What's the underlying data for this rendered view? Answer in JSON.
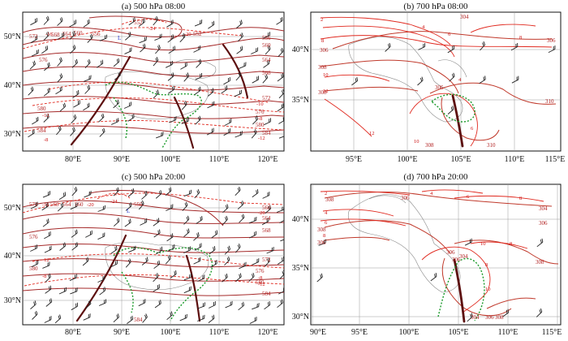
{
  "panels": [
    {
      "title": "(a) 500 hPa 08:00",
      "lat_ticks": [
        "50°N",
        "40°N",
        "30°N"
      ],
      "lon_ticks": [
        "80°E",
        "90°E",
        "100°E",
        "110°E",
        "120°E"
      ],
      "height_labels": [
        "572",
        "568",
        "564",
        "560",
        "556",
        "552",
        "552",
        "556",
        "560",
        "564",
        "568",
        "572",
        "576",
        "576",
        "580",
        "580",
        "584",
        "584"
      ],
      "temp_labels": [
        "-16",
        "-24",
        "-20",
        "-12",
        "-8",
        "-8",
        "-10",
        "-12"
      ],
      "low_marker": "L"
    },
    {
      "title": "(b) 700 hPa 08:00",
      "lat_ticks": [
        "40°N",
        "35°N"
      ],
      "lon_ticks": [
        "95°E",
        "100°E",
        "105°E",
        "110°E",
        "115°E"
      ],
      "height_labels": [
        "304",
        "306",
        "306",
        "308",
        "308",
        "306",
        "308",
        "310",
        "310"
      ],
      "temp_labels": [
        "2",
        "4",
        "6",
        "8",
        "8",
        "10",
        "12",
        "12",
        "10",
        "6",
        "4"
      ]
    },
    {
      "title": "(c) 500 hPa 20:00",
      "lat_ticks": [
        "50°N",
        "40°N",
        "30°N"
      ],
      "lon_ticks": [
        "80°E",
        "90°E",
        "100°E",
        "110°E",
        "120°E"
      ],
      "height_labels": [
        "572",
        "568",
        "564",
        "560",
        "556",
        "576",
        "580",
        "584",
        "560",
        "564",
        "568",
        "572",
        "576",
        "580",
        "584"
      ],
      "temp_labels": [
        "-16",
        "-20",
        "-24",
        "-20",
        "-12",
        "-8",
        "-8",
        "-12"
      ],
      "low_marker": "L"
    },
    {
      "title": "(d) 700 hPa 20:00",
      "lat_ticks": [
        "40°N",
        "35°N",
        "30°N"
      ],
      "lon_ticks": [
        "90°E",
        "95°E",
        "100°E",
        "105°E",
        "110°E",
        "115°E"
      ],
      "height_labels": [
        "308",
        "306",
        "304",
        "306",
        "308",
        "306",
        "304",
        "306",
        "308",
        "306",
        "304",
        "306",
        "308"
      ],
      "temp_labels": [
        "2",
        "4",
        "6",
        "8",
        "8",
        "4",
        "6",
        "8",
        "10",
        "8",
        "10"
      ]
    }
  ],
  "colors": {
    "height_contour": "#a52a2a",
    "temp_contour": "#e0281e",
    "trough_line": "#5c0f0f",
    "shear_line": "#1a9a2a",
    "terrain": "#888888",
    "wind_barb": "#222222"
  }
}
